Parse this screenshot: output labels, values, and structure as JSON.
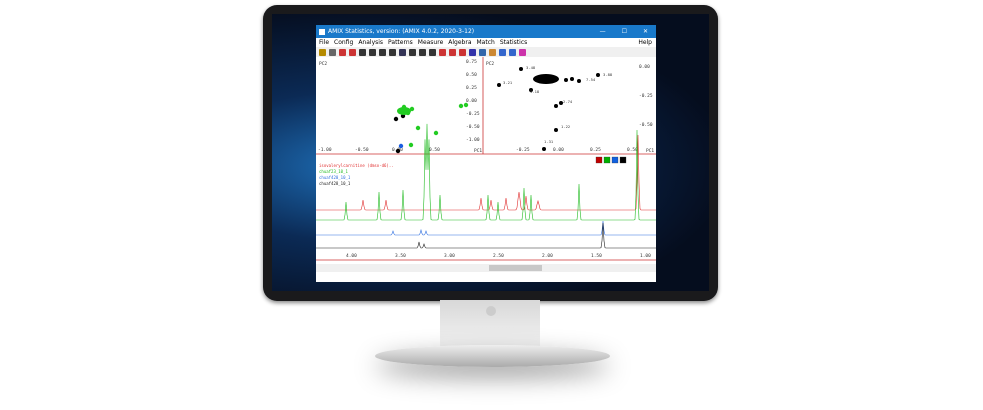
{
  "window": {
    "title": "AMIX Statistics, version: (AMIX 4.0.2, 2020-3-12)",
    "minimize": "—",
    "maximize": "☐",
    "close": "✕"
  },
  "menu": [
    "File",
    "Config",
    "Analysis",
    "Patterns",
    "Measure",
    "Algebra",
    "Match",
    "Statistics"
  ],
  "help": "Help",
  "toolbar": [
    "open",
    "print",
    "zoom-in",
    "zoom-out",
    "zoom-reset",
    "match",
    "statistics"
  ],
  "scores": {
    "ylabel": "PC2",
    "xlabel": "PC1",
    "yticks": [
      "0.75",
      "0.50",
      "0.25",
      "0.00",
      "-0.25",
      "-0.50",
      "-1.00"
    ],
    "xticks": [
      "-1.00",
      "-0.50",
      "0.00",
      "0.50"
    ]
  },
  "loadings": {
    "ylabel": "PC2",
    "xlabel": "PC1",
    "yticks": [
      "0.00",
      "-0.25",
      "-0.50"
    ],
    "xticks": [
      "-0.25",
      "0.00",
      "0.25",
      "0.50"
    ],
    "labels": [
      "3.48",
      "3.21",
      "3.18",
      "7.54",
      "3.88",
      "2.74",
      "1.22",
      "1.31"
    ]
  },
  "spectrum": {
    "legend": [
      {
        "name": "isovalerylcarnitine (dmso-d6)..",
        "color": "#e03030"
      },
      {
        "name": "chuaf23_10_1",
        "color": "#22bb22"
      },
      {
        "name": "chuaf420_10_1",
        "color": "#3070e0"
      },
      {
        "name": "chuaf428_10_1",
        "color": "#222222"
      }
    ],
    "xticks": [
      "4.00",
      "3.50",
      "3.00",
      "2.50",
      "2.00",
      "1.50",
      "1.00"
    ],
    "swatches": [
      "#c00000",
      "#00b000",
      "#1060e0",
      "#000000"
    ]
  }
}
